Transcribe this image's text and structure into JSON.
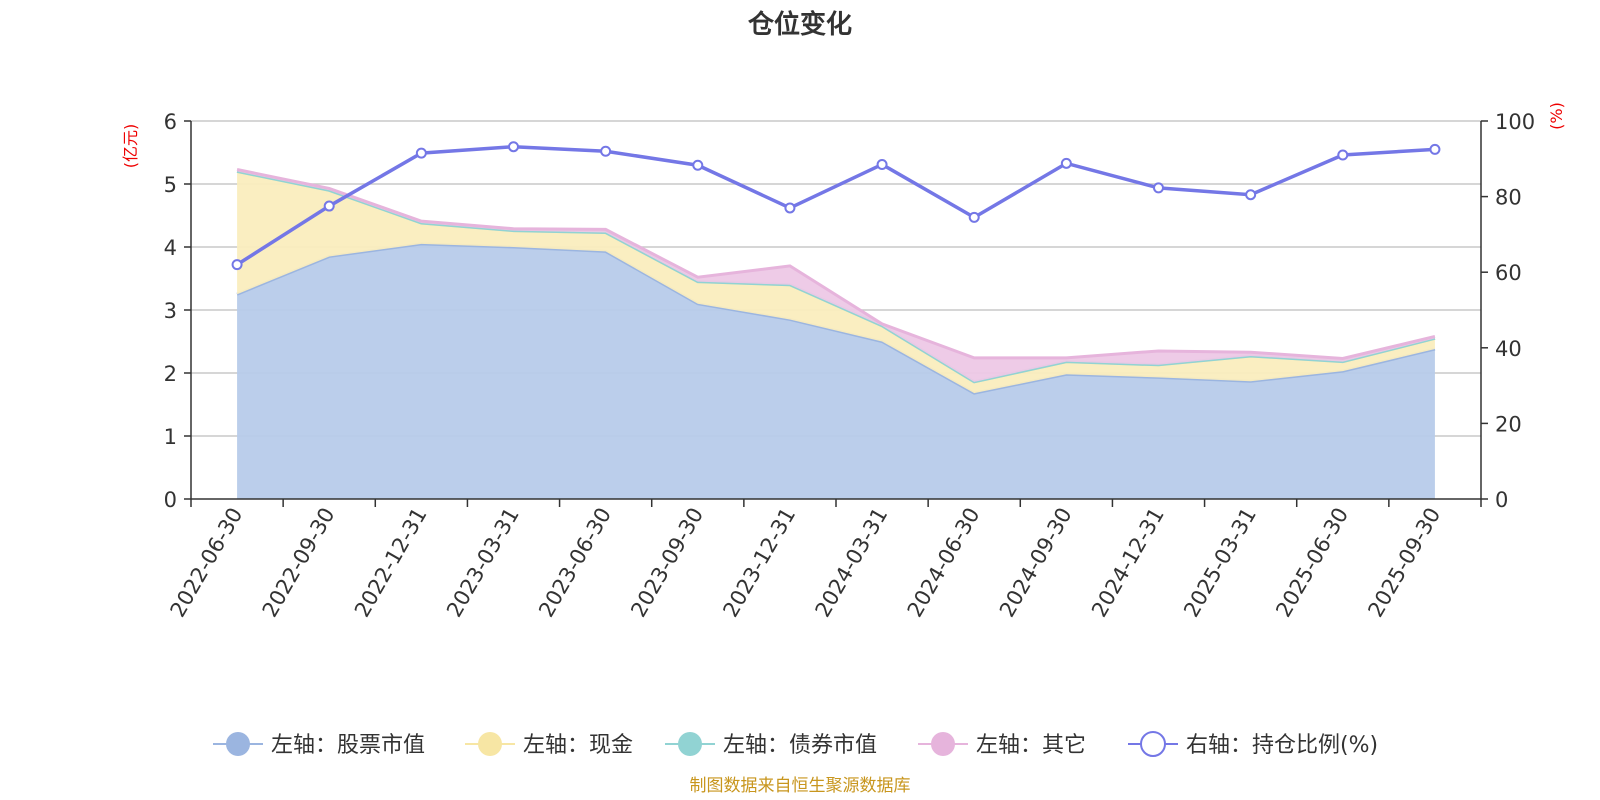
{
  "chart_data": {
    "type": "area",
    "title": "仓位变化",
    "categories": [
      "2022-06-30",
      "2022-09-30",
      "2022-12-31",
      "2023-03-31",
      "2023-06-30",
      "2023-09-30",
      "2023-12-31",
      "2024-03-31",
      "2024-06-30",
      "2024-09-30",
      "2024-12-31",
      "2025-03-31",
      "2025-06-30",
      "2025-09-30"
    ],
    "left_axis": {
      "unit": "(亿元)",
      "ylim": [
        0,
        6
      ],
      "ticks": [
        "0",
        "1",
        "2",
        "3",
        "4",
        "5",
        "6"
      ]
    },
    "right_axis": {
      "unit": "(%)",
      "ylim": [
        0,
        100
      ],
      "ticks": [
        "0",
        "20",
        "40",
        "60",
        "80",
        "100"
      ]
    },
    "series": [
      {
        "name": "左轴：股票市值",
        "type": "stacked-area",
        "axis": "left",
        "color": "#9bb5e0",
        "fill": "#b7cbea",
        "values": [
          3.25,
          3.85,
          4.05,
          4.0,
          3.93,
          3.1,
          2.85,
          2.5,
          1.68,
          1.98,
          1.93,
          1.87,
          2.03,
          2.38
        ]
      },
      {
        "name": "左轴：现金",
        "type": "stacked-area",
        "axis": "left",
        "color": "#f7e6a4",
        "fill": "#faedbe",
        "values": [
          1.95,
          1.05,
          0.33,
          0.26,
          0.3,
          0.35,
          0.55,
          0.25,
          0.18,
          0.2,
          0.2,
          0.4,
          0.15,
          0.17
        ]
      },
      {
        "name": "左轴：债券市值",
        "type": "stacked-area",
        "axis": "left",
        "color": "#91d3d3",
        "fill": "#b5e3e3",
        "values": [
          0,
          0,
          0,
          0,
          0,
          0,
          0,
          0,
          0,
          0,
          0,
          0,
          0,
          0
        ]
      },
      {
        "name": "左轴：其它",
        "type": "stacked-area",
        "axis": "left",
        "color": "#e6b4dc",
        "fill": "#edc8e6",
        "values": [
          0.03,
          0.03,
          0.03,
          0.03,
          0.05,
          0.07,
          0.3,
          0.03,
          0.38,
          0.06,
          0.22,
          0.06,
          0.05,
          0.03
        ]
      },
      {
        "name": "右轴：持仓比例(%)",
        "type": "line",
        "axis": "right",
        "color": "#7477e6",
        "values": [
          62,
          77.5,
          91.5,
          93.2,
          92,
          88.3,
          77,
          88.5,
          74.5,
          88.8,
          82.3,
          80.5,
          91,
          92.5
        ]
      }
    ],
    "source": "制图数据来自恒生聚源数据库"
  }
}
